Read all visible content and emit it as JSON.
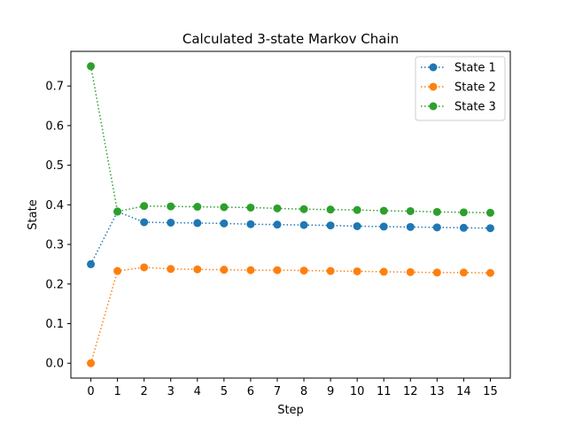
{
  "chart_data": {
    "type": "line",
    "title": "Calculated 3-state Markov Chain",
    "xlabel": "Step",
    "ylabel": "State",
    "x": [
      0,
      1,
      2,
      3,
      4,
      5,
      6,
      7,
      8,
      9,
      10,
      11,
      12,
      13,
      14,
      15
    ],
    "xlim": [
      -0.75,
      15.75
    ],
    "ylim": [
      -0.0375,
      0.7875
    ],
    "xticks": [
      0,
      1,
      2,
      3,
      4,
      5,
      6,
      7,
      8,
      9,
      10,
      11,
      12,
      13,
      14,
      15
    ],
    "yticks": [
      0.0,
      0.1,
      0.2,
      0.3,
      0.4,
      0.5,
      0.6,
      0.7
    ],
    "ytick_labels": [
      "0.0",
      "0.1",
      "0.2",
      "0.3",
      "0.4",
      "0.5",
      "0.6",
      "0.7"
    ],
    "grid": false,
    "legend_position": "top-right",
    "line_style": "dotted",
    "marker": "circle",
    "series": [
      {
        "name": "State 1",
        "color": "#1f77b4",
        "values": [
          0.25,
          0.383,
          0.356,
          0.355,
          0.354,
          0.353,
          0.351,
          0.35,
          0.349,
          0.348,
          0.346,
          0.345,
          0.344,
          0.343,
          0.342,
          0.341
        ]
      },
      {
        "name": "State 2",
        "color": "#ff7f0e",
        "values": [
          0.0,
          0.233,
          0.242,
          0.238,
          0.237,
          0.236,
          0.235,
          0.235,
          0.234,
          0.233,
          0.232,
          0.231,
          0.23,
          0.229,
          0.229,
          0.228
        ]
      },
      {
        "name": "State 3",
        "color": "#2ca02c",
        "values": [
          0.75,
          0.383,
          0.397,
          0.396,
          0.395,
          0.394,
          0.393,
          0.391,
          0.389,
          0.388,
          0.387,
          0.385,
          0.384,
          0.382,
          0.381,
          0.38
        ]
      }
    ]
  }
}
